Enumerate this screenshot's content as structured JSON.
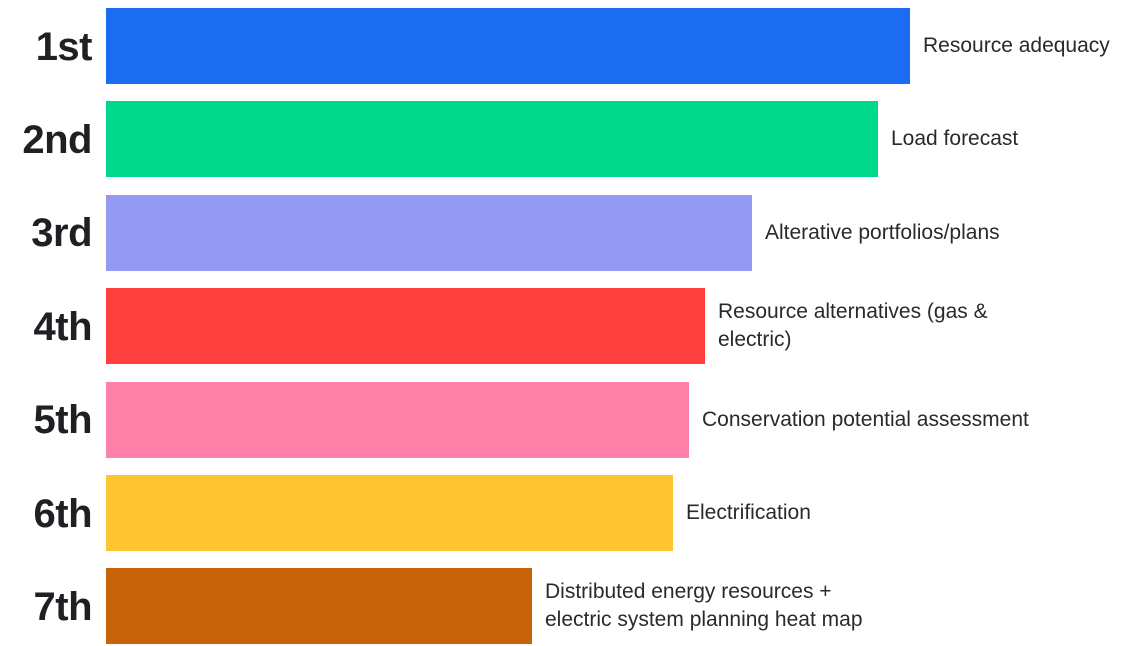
{
  "chart_data": {
    "type": "bar",
    "orientation": "horizontal",
    "title": "",
    "xlabel": "",
    "ylabel": "",
    "categories": [
      "Resource adequacy",
      "Load forecast",
      "Alterative portfolios/plans",
      "Resource alternatives (gas &\nelectric)",
      "Conservation potential assessment",
      "Electrification",
      "Distributed energy resources +\nelectric system planning heat map"
    ],
    "ranks": [
      "1st",
      "2nd",
      "3rd",
      "4th",
      "5th",
      "6th",
      "7th"
    ],
    "values": [
      804,
      772,
      646,
      599,
      583,
      567,
      426
    ],
    "colors": [
      "#1c6cf2",
      "#00d98c",
      "#9499f2",
      "#ff3e3e",
      "#ff80a8",
      "#ffc431",
      "#c8630a"
    ],
    "axis_visible": false,
    "grid": false,
    "legend": "none"
  }
}
